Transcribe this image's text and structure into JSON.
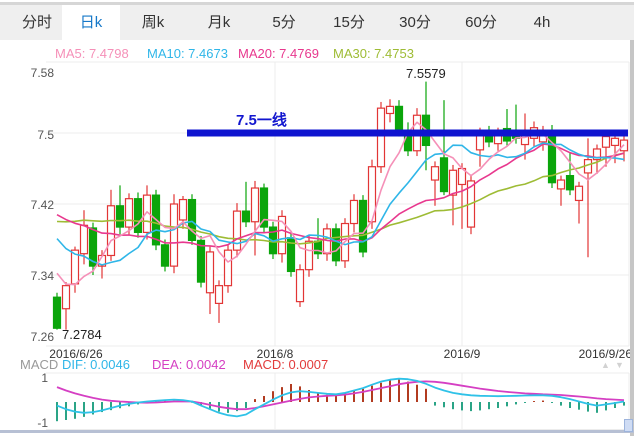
{
  "tabs": {
    "items": [
      {
        "label": "分时"
      },
      {
        "label": "日k"
      },
      {
        "label": "周k"
      },
      {
        "label": "月k"
      },
      {
        "label": "5分"
      },
      {
        "label": "15分"
      },
      {
        "label": "30分"
      },
      {
        "label": "60分"
      },
      {
        "label": "4h"
      }
    ],
    "active_label": "日k"
  },
  "ma_legend": {
    "ma5": "MA5: 7.4798",
    "ma10": "MA10: 7.4673",
    "ma20": "MA20: 7.4769",
    "ma30": "MA30: 7.4753"
  },
  "axis": {
    "y_labels": [
      "7.58",
      "7.5",
      "7.42",
      "7.34",
      "7.26"
    ],
    "x_labels": [
      "2016/6/26",
      "2016/8",
      "2016/9",
      "2016/9/26"
    ]
  },
  "annotations": {
    "high": "7.5579",
    "low": "7.2784",
    "hline": "7.5一线"
  },
  "macd_header": {
    "title": "MACD",
    "dif": "DIF: 0.0046",
    "dea": "DEA: 0.0042",
    "macd": "MACD: 0.0007"
  },
  "macd_axis": {
    "top": "1",
    "bottom": "-1"
  },
  "controls": {
    "up": "▲",
    "down": "▼"
  },
  "colors": {
    "up_candle": "#e23535",
    "down_candle": "#0ba50b",
    "ma5": "#f590b8",
    "ma10": "#2fb6e8",
    "ma20": "#e8388e",
    "ma30": "#9ebc35",
    "support_line": "#0f14d0",
    "dif_line": "#2fc2e8",
    "dea_line": "#d53fc3",
    "macd_up_bar": "#b23b20",
    "macd_down_bar": "#2aa486",
    "active_tab_text": "#1678c8",
    "grid": "#ececec"
  },
  "chart_data": {
    "type": "candlestick",
    "title": "",
    "x_ticks": [
      "2016/6/26",
      "2016/8",
      "2016/9",
      "2016/9/26"
    ],
    "y_ticks": [
      7.58,
      7.5,
      7.42,
      7.34,
      7.26
    ],
    "support_line_value": 7.5,
    "high_point": 7.5579,
    "low_point": 7.2784,
    "candles": [
      [
        7.315,
        7.32,
        7.2784,
        7.28
      ],
      [
        7.302,
        7.332,
        7.2784,
        7.328
      ],
      [
        7.33,
        7.372,
        7.32,
        7.368
      ],
      [
        7.364,
        7.413,
        7.352,
        7.396
      ],
      [
        7.393,
        7.399,
        7.34,
        7.35
      ],
      [
        7.35,
        7.368,
        7.336,
        7.362
      ],
      [
        7.362,
        7.436,
        7.356,
        7.418
      ],
      [
        7.418,
        7.441,
        7.386,
        7.394
      ],
      [
        7.394,
        7.432,
        7.385,
        7.426
      ],
      [
        7.426,
        7.433,
        7.382,
        7.388
      ],
      [
        7.388,
        7.441,
        7.38,
        7.43
      ],
      [
        7.43,
        7.436,
        7.368,
        7.374
      ],
      [
        7.374,
        7.38,
        7.344,
        7.35
      ],
      [
        7.35,
        7.431,
        7.342,
        7.42
      ],
      [
        7.402,
        7.429,
        7.392,
        7.425
      ],
      [
        7.425,
        7.431,
        7.374,
        7.379
      ],
      [
        7.379,
        7.384,
        7.326,
        7.332
      ],
      [
        7.32,
        7.372,
        7.296,
        7.366
      ],
      [
        7.308,
        7.334,
        7.286,
        7.328
      ],
      [
        7.328,
        7.374,
        7.32,
        7.368
      ],
      [
        7.368,
        7.421,
        7.36,
        7.412
      ],
      [
        7.412,
        7.445,
        7.394,
        7.4
      ],
      [
        7.4,
        7.446,
        7.362,
        7.438
      ],
      [
        7.438,
        7.443,
        7.388,
        7.394
      ],
      [
        7.394,
        7.4,
        7.358,
        7.364
      ],
      [
        7.364,
        7.413,
        7.354,
        7.406
      ],
      [
        7.382,
        7.388,
        7.338,
        7.344
      ],
      [
        7.31,
        7.352,
        7.304,
        7.346
      ],
      [
        7.346,
        7.384,
        7.338,
        7.378
      ],
      [
        7.378,
        7.404,
        7.358,
        7.364
      ],
      [
        7.364,
        7.398,
        7.356,
        7.392
      ],
      [
        7.392,
        7.398,
        7.35,
        7.356
      ],
      [
        7.356,
        7.404,
        7.348,
        7.398
      ],
      [
        7.398,
        7.431,
        7.388,
        7.424
      ],
      [
        7.424,
        7.43,
        7.36,
        7.366
      ],
      [
        7.4,
        7.47,
        7.392,
        7.462
      ],
      [
        7.462,
        7.535,
        7.455,
        7.528
      ],
      [
        7.522,
        7.538,
        7.512,
        7.53
      ],
      [
        7.53,
        7.537,
        7.496,
        7.502
      ],
      [
        7.502,
        7.512,
        7.474,
        7.48
      ],
      [
        7.48,
        7.528,
        7.474,
        7.52
      ],
      [
        7.52,
        7.5579,
        7.458,
        7.486
      ],
      [
        7.447,
        7.468,
        7.418,
        7.462
      ],
      [
        7.472,
        7.537,
        7.43,
        7.434
      ],
      [
        7.43,
        7.464,
        7.396,
        7.458
      ],
      [
        7.442,
        7.466,
        7.392,
        7.46
      ],
      [
        7.394,
        7.452,
        7.386,
        7.446
      ],
      [
        7.481,
        7.506,
        7.462,
        7.498
      ],
      [
        7.498,
        7.508,
        7.484,
        7.49
      ],
      [
        7.488,
        7.506,
        7.48,
        7.5
      ],
      [
        7.505,
        7.527,
        7.486,
        7.491
      ],
      [
        7.5,
        7.532,
        7.488,
        7.494
      ],
      [
        7.487,
        7.522,
        7.47,
        7.5
      ],
      [
        7.494,
        7.513,
        7.484,
        7.506
      ],
      [
        7.49,
        7.508,
        7.48,
        7.502
      ],
      [
        7.502,
        7.509,
        7.438,
        7.444
      ],
      [
        7.437,
        7.452,
        7.418,
        7.447
      ],
      [
        7.452,
        7.478,
        7.43,
        7.436
      ],
      [
        7.424,
        7.445,
        7.398,
        7.44
      ],
      [
        7.455,
        7.494,
        7.36,
        7.47
      ],
      [
        7.47,
        7.487,
        7.454,
        7.482
      ],
      [
        7.484,
        7.501,
        7.462,
        7.496
      ],
      [
        7.486,
        7.5,
        7.466,
        7.494
      ],
      [
        7.48,
        7.499,
        7.468,
        7.492
      ]
    ],
    "ma_windows": [
      5,
      10,
      20,
      30
    ],
    "ma_seed_closes": [
      7.33,
      7.34,
      7.35,
      7.36,
      7.37,
      7.38,
      7.39,
      7.4,
      7.41,
      7.42,
      7.43,
      7.44,
      7.45,
      7.45,
      7.44,
      7.44,
      7.43,
      7.43,
      7.42,
      7.42,
      7.43,
      7.44,
      7.43,
      7.42,
      7.41,
      7.4,
      7.39,
      7.37,
      7.35,
      7.32
    ],
    "macd": {
      "y_ticks": [
        1,
        -1
      ],
      "dif": [
        -0.15,
        -0.3,
        -0.4,
        -0.45,
        -0.42,
        -0.35,
        -0.25,
        -0.15,
        -0.08,
        -0.02,
        0.02,
        0.05,
        0.08,
        0.1,
        0.08,
        0.02,
        -0.15,
        -0.3,
        -0.45,
        -0.55,
        -0.6,
        -0.52,
        -0.3,
        -0.1,
        0.1,
        0.28,
        0.4,
        0.45,
        0.42,
        0.38,
        0.34,
        0.32,
        0.38,
        0.48,
        0.58,
        0.72,
        0.85,
        0.93,
        0.97,
        0.95,
        0.88,
        0.76,
        0.6,
        0.48,
        0.38,
        0.32,
        0.28,
        0.26,
        0.25,
        0.24,
        0.25,
        0.26,
        0.27,
        0.28,
        0.28,
        0.26,
        0.2,
        0.12,
        0.02,
        -0.08,
        -0.15,
        -0.1,
        -0.04,
        0.02
      ],
      "dea": [
        0.62,
        0.48,
        0.36,
        0.26,
        0.17,
        0.1,
        0.05,
        0.02,
        0.0,
        -0.02,
        -0.03,
        -0.02,
        0.0,
        0.02,
        0.03,
        0.02,
        -0.04,
        -0.12,
        -0.2,
        -0.26,
        -0.3,
        -0.3,
        -0.25,
        -0.18,
        -0.1,
        -0.02,
        0.06,
        0.13,
        0.19,
        0.23,
        0.26,
        0.28,
        0.31,
        0.36,
        0.42,
        0.5,
        0.58,
        0.66,
        0.74,
        0.8,
        0.84,
        0.86,
        0.84,
        0.8,
        0.74,
        0.68,
        0.62,
        0.56,
        0.51,
        0.46,
        0.42,
        0.39,
        0.36,
        0.34,
        0.32,
        0.31,
        0.29,
        0.26,
        0.23,
        0.19,
        0.15,
        0.12,
        0.1,
        0.08
      ],
      "hist": [
        -0.8,
        -0.75,
        -0.7,
        -0.62,
        -0.52,
        -0.42,
        -0.34,
        -0.26,
        -0.18,
        -0.1,
        -0.04,
        0.04,
        0.06,
        0.05,
        0.02,
        -0.03,
        -0.15,
        -0.28,
        -0.4,
        -0.45,
        -0.38,
        -0.25,
        0.12,
        0.25,
        0.45,
        0.62,
        0.75,
        0.65,
        0.5,
        0.38,
        0.3,
        0.28,
        0.38,
        0.5,
        0.55,
        0.68,
        0.8,
        0.9,
        0.95,
        0.85,
        0.72,
        0.55,
        -0.15,
        -0.22,
        -0.3,
        -0.35,
        -0.38,
        -0.35,
        -0.3,
        -0.25,
        -0.18,
        -0.1,
        -0.04,
        0.04,
        0.06,
        -0.04,
        -0.15,
        -0.25,
        -0.32,
        -0.4,
        -0.45,
        -0.35,
        -0.25,
        -0.15
      ]
    }
  }
}
